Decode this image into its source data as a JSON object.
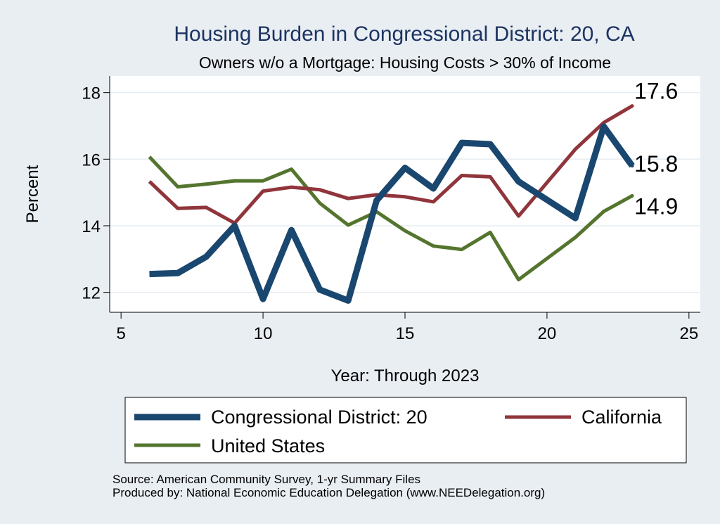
{
  "chart_data": {
    "type": "line",
    "title": "Housing Burden in Congressional District:  20, CA",
    "subtitle": "Owners w/o a Mortgage: Housing Costs > 30% of Income",
    "xlabel": "Year: Through 2023",
    "ylabel": "Percent",
    "xlim": [
      4.6,
      25.4
    ],
    "ylim": [
      11.4,
      18.5
    ],
    "x_ticks": [
      5,
      10,
      15,
      20,
      25
    ],
    "y_ticks": [
      12,
      14,
      16,
      18
    ],
    "x_tick_labels": [
      "5",
      "10",
      "15",
      "20",
      "25"
    ],
    "y_tick_labels": [
      "12",
      "14",
      "16",
      "18"
    ],
    "grid": true,
    "legend_position": "bottom",
    "series": [
      {
        "name": "Congressional District:  20",
        "color": "#1a476f",
        "width": 9,
        "x": [
          6,
          7,
          8,
          9,
          10,
          11,
          12,
          13,
          14,
          15,
          16,
          17,
          18,
          19,
          21,
          22,
          23
        ],
        "y": [
          12.55,
          12.58,
          13.07,
          14.0,
          11.8,
          13.87,
          12.08,
          11.75,
          14.76,
          15.74,
          15.12,
          16.49,
          16.45,
          15.33,
          14.23,
          16.98,
          15.8
        ],
        "end_label": "15.8"
      },
      {
        "name": "California",
        "color": "#90353b",
        "width": 5,
        "x": [
          6,
          7,
          8,
          9,
          10,
          11,
          12,
          13,
          14,
          15,
          16,
          17,
          18,
          19,
          21,
          22,
          23
        ],
        "y": [
          15.33,
          14.52,
          14.55,
          14.08,
          15.04,
          15.16,
          15.08,
          14.82,
          14.93,
          14.87,
          14.72,
          15.51,
          15.47,
          14.29,
          16.3,
          17.1,
          17.6
        ],
        "end_label": "17.6"
      },
      {
        "name": "United States",
        "color": "#55752f",
        "width": 5,
        "x": [
          6,
          7,
          8,
          9,
          10,
          11,
          12,
          13,
          14,
          15,
          16,
          17,
          18,
          19,
          21,
          22,
          23
        ],
        "y": [
          16.07,
          15.17,
          15.25,
          15.35,
          15.35,
          15.7,
          14.68,
          14.02,
          14.42,
          13.85,
          13.39,
          13.29,
          13.8,
          12.38,
          13.65,
          14.43,
          14.9
        ],
        "end_label": "14.9"
      }
    ]
  },
  "notes": [
    "Source: American Community Survey, 1-yr Summary Files",
    "Produced by: National Economic Education Delegation (www.NEEDelegation.org)"
  ]
}
